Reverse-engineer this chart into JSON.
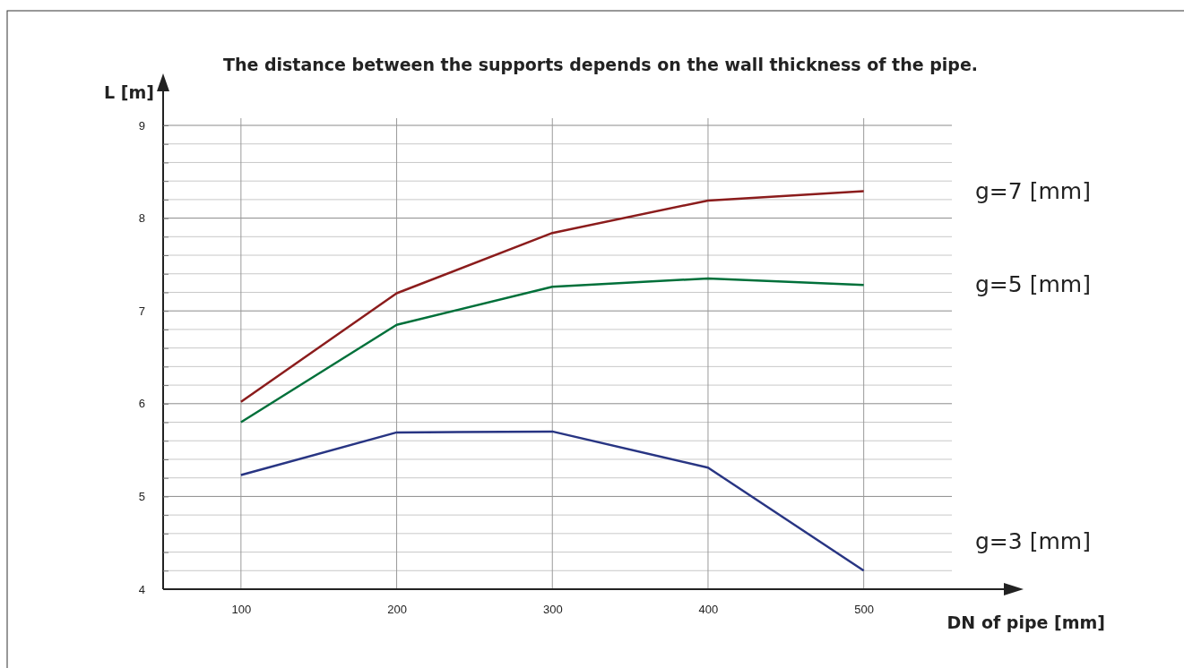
{
  "chart_data": {
    "type": "line",
    "title": "The distance between the supports depends on the wall thickness of the pipe.",
    "xlabel": "DN of pipe [mm]",
    "ylabel": "L [m]",
    "x": [
      100,
      200,
      300,
      400,
      500
    ],
    "series": [
      {
        "name": "g=7 [mm]",
        "color": "#8b1c1c",
        "values": [
          6.02,
          7.19,
          7.84,
          8.19,
          8.29
        ]
      },
      {
        "name": "g=5 [mm]",
        "color": "#00703a",
        "values": [
          5.8,
          6.85,
          7.26,
          7.35,
          7.28
        ]
      },
      {
        "name": "g=3 [mm]",
        "color": "#283583",
        "values": [
          5.23,
          5.69,
          5.7,
          5.31,
          4.2
        ]
      }
    ],
    "xlim": [
      50,
      590
    ],
    "xticks": [
      100,
      200,
      300,
      400,
      500
    ],
    "ylim": [
      4,
      9
    ],
    "yticks": [
      4,
      {
        "value": 4.2,
        "label": null
      },
      {
        "value": 4.4,
        "label": null
      },
      {
        "value": 4.6,
        "label": null
      },
      {
        "value": 4.8,
        "label": null
      },
      5,
      {
        "value": 5.2,
        "label": null
      },
      {
        "value": 5.4,
        "label": null
      },
      {
        "value": 5.6,
        "label": null
      },
      {
        "value": 5.8,
        "label": null
      },
      6,
      {
        "value": 6.2,
        "label": null
      },
      {
        "value": 6.4,
        "label": null
      },
      {
        "value": 6.6,
        "label": null
      },
      {
        "value": 6.8,
        "label": null
      },
      7,
      {
        "value": 7.2,
        "label": null
      },
      {
        "value": 7.4,
        "label": null
      },
      {
        "value": 7.6,
        "label": null
      },
      {
        "value": 7.8,
        "label": null
      },
      8,
      {
        "value": 8.2,
        "label": null
      },
      {
        "value": 8.4,
        "label": null
      },
      {
        "value": 8.6,
        "label": null
      },
      {
        "value": 8.8,
        "label": null
      },
      9
    ],
    "grid": true,
    "marker": "none",
    "line_style": "solid"
  }
}
